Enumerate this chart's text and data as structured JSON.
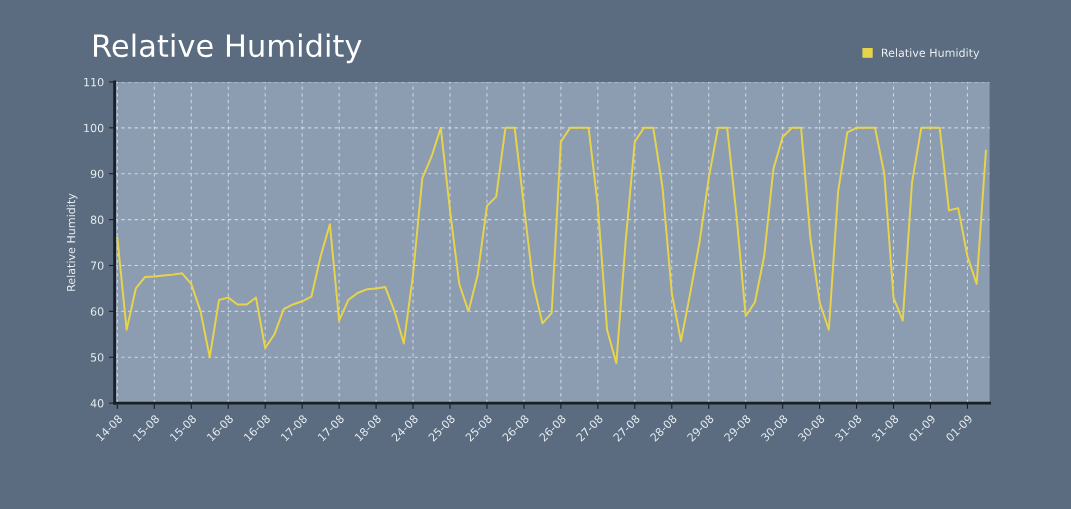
{
  "chart_data": {
    "type": "line",
    "title": "Relative Humidity",
    "ylabel": "Relative Humidity",
    "categories": [
      "14-08",
      null,
      null,
      null,
      "15-08",
      null,
      null,
      null,
      "15-08",
      null,
      null,
      null,
      "16-08",
      null,
      null,
      null,
      "16-08",
      null,
      null,
      null,
      "17-08",
      null,
      null,
      null,
      "17-08",
      null,
      null,
      null,
      "18-08",
      null,
      null,
      null,
      "24-08",
      null,
      null,
      null,
      "25-08",
      null,
      null,
      null,
      "25-08",
      null,
      null,
      null,
      "26-08",
      null,
      null,
      null,
      "26-08",
      null,
      null,
      null,
      "27-08",
      null,
      null,
      null,
      "27-08",
      null,
      null,
      null,
      "28-08",
      null,
      null,
      null,
      "29-08",
      null,
      null,
      null,
      "29-08",
      null,
      null,
      null,
      "30-08",
      null,
      null,
      null,
      "30-08",
      null,
      null,
      null,
      "31-08",
      null,
      null,
      null,
      "31-08",
      null,
      null,
      null,
      "01-09",
      null,
      null,
      null,
      "01-09",
      null,
      null
    ],
    "series": [
      {
        "name": "Relative Humidity",
        "color": "#e8d44a",
        "values": [
          76,
          56,
          65,
          67.5,
          67.6,
          67.8,
          68,
          68.3,
          66,
          60,
          50,
          62.5,
          63,
          61.5,
          61.5,
          63,
          52,
          55,
          60.5,
          61.5,
          62.2,
          63.2,
          72,
          79,
          58,
          62.5,
          64,
          64.8,
          65,
          65.3,
          60,
          53,
          68,
          89,
          93.7,
          100,
          82,
          66,
          60,
          68,
          83,
          85,
          100,
          100,
          83,
          66,
          57.4,
          59.6,
          97,
          100,
          100,
          100,
          83,
          56,
          48.7,
          75,
          97,
          100,
          100,
          87,
          64,
          53.5,
          64,
          75,
          89,
          100,
          100,
          81,
          59,
          62,
          72,
          91,
          98,
          100,
          100,
          76,
          62,
          56,
          86,
          99,
          100,
          100,
          100,
          90,
          63,
          58,
          88,
          100,
          100,
          100,
          82,
          82.5,
          72,
          66,
          95
        ]
      }
    ],
    "ylim": [
      40,
      110
    ],
    "yticks": [
      40,
      50,
      60,
      70,
      80,
      90,
      100,
      110
    ],
    "grid": true,
    "legend": "top right",
    "marker": "none",
    "line_style": "solid"
  }
}
